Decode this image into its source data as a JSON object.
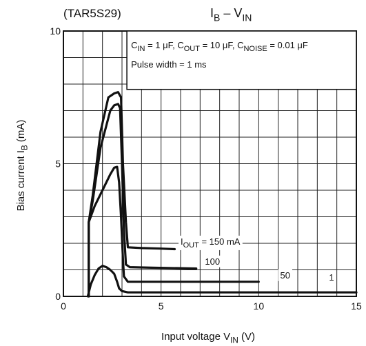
{
  "chart_data": {
    "type": "line",
    "device": "(TAR5S29)",
    "title": {
      "main": "I",
      "sub": "B",
      "rest": " – V",
      "sub2": "IN"
    },
    "xlabel": {
      "main": "Input voltage   V",
      "sub": "IN",
      "rest": "   (V)"
    },
    "ylabel": {
      "main": "Bias current   I",
      "sub": "B",
      "rest": "   (mA)"
    },
    "xlim": [
      0,
      15
    ],
    "ylim": [
      0,
      10
    ],
    "x_ticks": [
      0,
      5,
      10,
      15
    ],
    "y_ticks": [
      0,
      5,
      10
    ],
    "x_tick_labels": [
      "0",
      "5",
      "10",
      "15"
    ],
    "y_tick_labels": [
      "0",
      "5",
      "10"
    ],
    "grid": true,
    "conditions": {
      "line1": [
        {
          "main": "C",
          "sub": "IN"
        },
        {
          "main": " = 1 μF, C",
          "sub": "OUT"
        },
        {
          "main": " = 10 μF, C",
          "sub": "NOISE"
        },
        {
          "main": " = 0.01 μF",
          "sub": ""
        }
      ],
      "line2": "Pulse width = 1 ms"
    },
    "series": [
      {
        "name": "150 mA",
        "x": [
          1.3,
          1.3,
          1.5,
          1.9,
          2.3,
          2.6,
          2.8,
          2.95,
          3.05,
          3.2,
          3.3,
          4.0,
          5.0,
          5.7
        ],
        "y": [
          0,
          2.8,
          3.8,
          6.2,
          7.5,
          7.65,
          7.7,
          7.5,
          5.0,
          2.8,
          1.85,
          1.82,
          1.8,
          1.78
        ]
      },
      {
        "name": "100",
        "x": [
          1.3,
          1.3,
          1.5,
          1.9,
          2.4,
          2.6,
          2.8,
          2.9,
          3.0,
          3.1,
          3.2,
          3.4,
          4.5,
          6.8
        ],
        "y": [
          0,
          2.8,
          3.6,
          5.6,
          7.0,
          7.2,
          7.25,
          7.1,
          5.0,
          2.5,
          1.2,
          1.1,
          1.08,
          1.05
        ]
      },
      {
        "name": "50",
        "x": [
          1.3,
          1.3,
          1.6,
          2.0,
          2.4,
          2.6,
          2.75,
          2.85,
          2.95,
          3.05,
          3.1,
          3.3,
          6.0,
          10.0
        ],
        "y": [
          0,
          2.8,
          3.4,
          4.0,
          4.6,
          4.85,
          4.88,
          4.3,
          3.0,
          1.4,
          0.75,
          0.55,
          0.55,
          0.55
        ]
      },
      {
        "name": "1",
        "x": [
          1.25,
          1.4,
          1.6,
          1.8,
          2.0,
          2.2,
          2.4,
          2.6,
          2.75,
          2.85,
          3.0,
          3.3,
          5.0,
          15.0
        ],
        "y": [
          0,
          0.45,
          0.8,
          1.05,
          1.15,
          1.1,
          1.0,
          0.85,
          0.55,
          0.3,
          0.2,
          0.15,
          0.15,
          0.15
        ]
      }
    ],
    "curve_labels": [
      {
        "text": "I",
        "sub": "OUT",
        "rest": " = 150 mA",
        "x": 6.0,
        "y": 1.95
      },
      {
        "text": "100",
        "sub": "",
        "rest": "",
        "x": 7.25,
        "y": 1.2
      },
      {
        "text": "50",
        "sub": "",
        "rest": "",
        "x": 11.1,
        "y": 0.68
      },
      {
        "text": "1",
        "sub": "",
        "rest": "",
        "x": 13.6,
        "y": 0.6
      }
    ]
  }
}
